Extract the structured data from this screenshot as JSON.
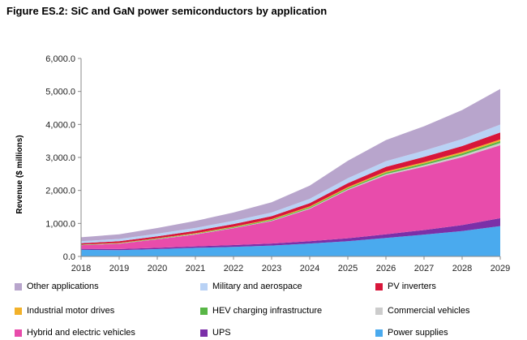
{
  "figure_title": "Figure ES.2: SiC and GaN power semiconductors by application",
  "chart_data": {
    "type": "area",
    "stacked": true,
    "title": "Figure ES.2: SiC and GaN power semiconductors by application",
    "xlabel": "",
    "ylabel": "Revenue ($ millions)",
    "x": [
      "2018",
      "2019",
      "2020",
      "2021",
      "2022",
      "2023",
      "2024",
      "2025",
      "2026",
      "2027",
      "2028",
      "2029"
    ],
    "ylim": [
      0,
      6000
    ],
    "yticks": [
      "0.0",
      "1,000.0",
      "2,000.0",
      "3,000.0",
      "4,000.0",
      "5,000.0",
      "6,000.0"
    ],
    "ytick_values": [
      0,
      1000,
      2000,
      3000,
      4000,
      5000,
      6000
    ],
    "grid": false,
    "legend_position": "bottom",
    "series": [
      {
        "name": "Power supplies",
        "color": "#4aaaee",
        "values": [
          200,
          190,
          220,
          260,
          290,
          330,
          390,
          460,
          560,
          660,
          770,
          920
        ]
      },
      {
        "name": "UPS",
        "color": "#7b2fa8",
        "values": [
          30,
          35,
          40,
          45,
          55,
          60,
          70,
          90,
          110,
          140,
          180,
          240
        ]
      },
      {
        "name": "Hybrid and electric vehicles",
        "color": "#e84cab",
        "values": [
          110,
          160,
          260,
          360,
          510,
          680,
          980,
          1460,
          1790,
          1920,
          2060,
          2210
        ]
      },
      {
        "name": "Commercial vehicles",
        "color": "#cccccc",
        "values": [
          5,
          5,
          5,
          10,
          10,
          15,
          20,
          25,
          35,
          45,
          55,
          65
        ]
      },
      {
        "name": "HEV charging infrastructure",
        "color": "#58b646",
        "values": [
          10,
          10,
          15,
          15,
          20,
          25,
          30,
          35,
          45,
          50,
          55,
          60
        ]
      },
      {
        "name": "Industrial motor drives",
        "color": "#f2b12a",
        "values": [
          5,
          10,
          10,
          15,
          15,
          20,
          25,
          30,
          35,
          40,
          45,
          50
        ]
      },
      {
        "name": "PV inverters",
        "color": "#d8163a",
        "values": [
          40,
          50,
          60,
          70,
          80,
          90,
          100,
          120,
          140,
          160,
          180,
          210
        ]
      },
      {
        "name": "Military and aerospace",
        "color": "#b9d2f5",
        "values": [
          60,
          70,
          80,
          90,
          100,
          110,
          130,
          150,
          170,
          190,
          210,
          240
        ]
      },
      {
        "name": "Other applications",
        "color": "#b8a5cc",
        "values": [
          120,
          140,
          170,
          210,
          250,
          310,
          400,
          530,
          640,
          740,
          880,
          1080
        ]
      }
    ],
    "legend_order": [
      "Other applications",
      "Military and aerospace",
      "PV inverters",
      "Industrial motor drives",
      "HEV charging infrastructure",
      "Commercial vehicles",
      "Hybrid and electric vehicles",
      "UPS",
      "Power supplies"
    ]
  }
}
